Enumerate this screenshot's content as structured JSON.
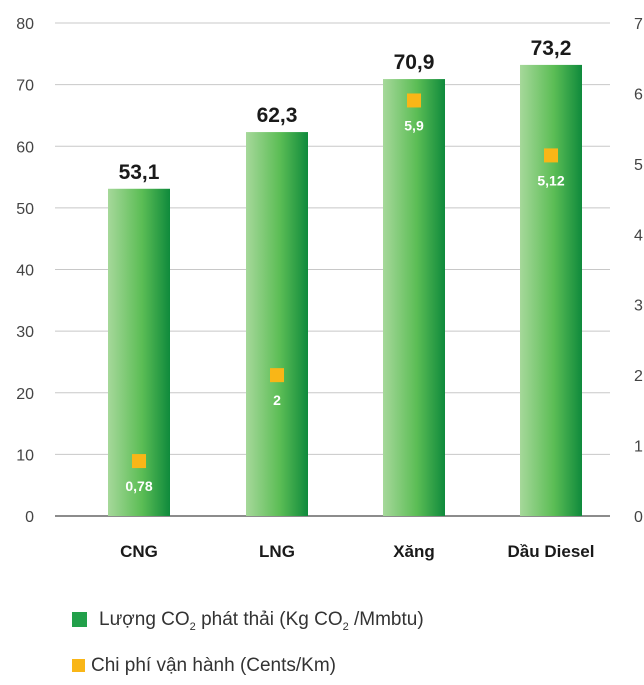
{
  "chart_data": {
    "type": "bar",
    "categories": [
      "CNG",
      "LNG",
      "Xăng",
      "Dầu Diesel"
    ],
    "series": [
      {
        "values": [
          53.1,
          62.3,
          70.9,
          73.2
        ],
        "labels": [
          "53,1",
          "62,3",
          "70,9",
          "73,2"
        ],
        "axis": "left"
      },
      {
        "values": [
          0.78,
          2,
          5.9,
          5.12
        ],
        "labels": [
          "0,78",
          "2",
          "5,9",
          "5,12"
        ],
        "axis": "right",
        "marker": "square"
      }
    ],
    "y_left": {
      "ylim": [
        0,
        80
      ],
      "ticks": [
        "0",
        "10",
        "20",
        "30",
        "40",
        "50",
        "60",
        "70",
        "80"
      ]
    },
    "y_right": {
      "ylim": [
        0,
        7
      ],
      "ticks": [
        "0",
        "1",
        "2",
        "3",
        "4",
        "5",
        "6",
        "7"
      ]
    },
    "grid": true,
    "legend_position": "bottom-left",
    "colors": {
      "bar_light": "#a6d89a",
      "bar_dark": "#0f8a3c",
      "marker": "#f9b617",
      "grid": "#c8c8c8",
      "axis": "#666666"
    }
  },
  "legend": {
    "emission": {
      "pre": "Lượng CO",
      "sub1": "2",
      "mid": " phát thải (Kg CO",
      "sub2": "2",
      "post": " /Mmbtu)"
    },
    "cost": {
      "text": "Chi phí vận hành (Cents/Km)"
    }
  }
}
